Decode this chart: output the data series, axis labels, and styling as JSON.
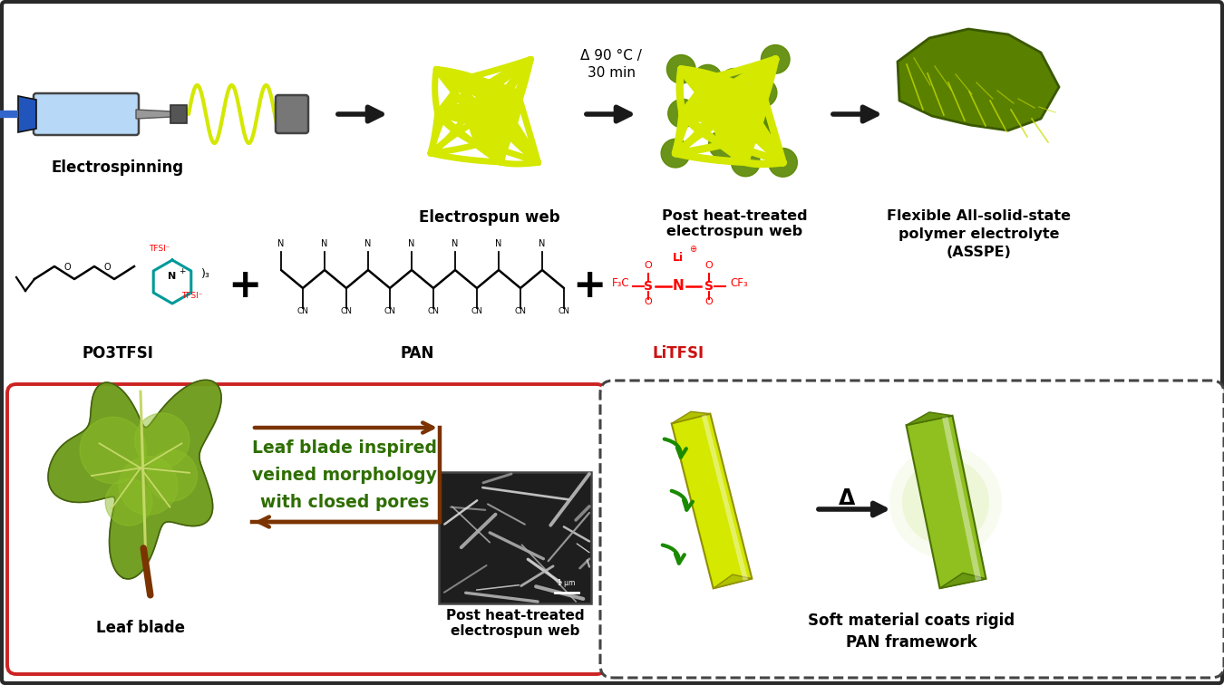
{
  "bg_color": "#ffffff",
  "border_color": "#2a2a2a",
  "yellow_fiber": "#d4e800",
  "olive_green": "#5a8800",
  "dark_olive": "#3a6000",
  "leaf_green": "#5a8a18",
  "brown_arrow": "#7b3300",
  "green_text": "#2e6e00",
  "red_litfsi": "#cc1111",
  "arrow_dark": "#1a1a1a",
  "labels": {
    "electrospinning": "Electrospinning",
    "electrospun_web": "Electrospun web",
    "heat": "Δ 90 °C /\n30 min",
    "post_heat": "Post heat-treated\nelectrospun web",
    "flexible": "Flexible All-solid-state\npolymer electrolyte\n(ASSPE)",
    "po3tfsi": "PO3TFSI",
    "pan": "PAN",
    "litfsi": "LiTFSI",
    "leaf_blade": "Leaf blade",
    "leaf_text1": "Leaf blade inspired",
    "leaf_text2": "veined morphology",
    "leaf_text3": "with closed pores",
    "post_heat_web": "Post heat-treated\nelectrospun web",
    "soft_material": "Soft material coats rigid\nPAN framework"
  }
}
